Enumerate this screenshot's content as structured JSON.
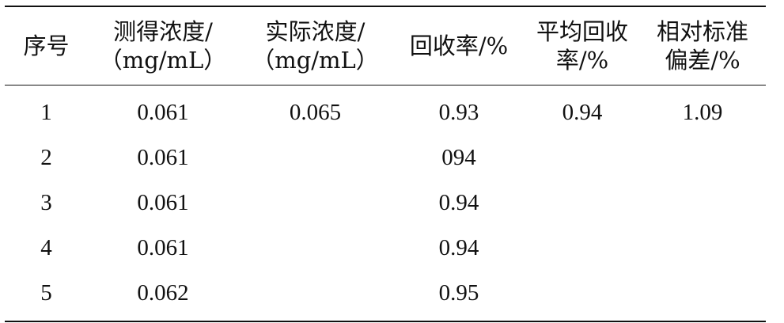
{
  "table": {
    "headers": [
      {
        "line1": "序号",
        "line2": ""
      },
      {
        "line1": "测得浓度/",
        "line2": "（mg/mL）"
      },
      {
        "line1": "实际浓度/",
        "line2": "（mg/mL）"
      },
      {
        "line1": "回收率/%",
        "line2": ""
      },
      {
        "line1": "平均回收",
        "line2": "率/%"
      },
      {
        "line1": "相对标准",
        "line2": "偏差/%"
      }
    ],
    "rows": [
      [
        "1",
        "0.061",
        "0.065",
        "0.93",
        "0.94",
        "1.09"
      ],
      [
        "2",
        "0.061",
        "",
        "094",
        "",
        ""
      ],
      [
        "3",
        "0.061",
        "",
        "0.94",
        "",
        ""
      ],
      [
        "4",
        "0.061",
        "",
        "0.94",
        "",
        ""
      ],
      [
        "5",
        "0.062",
        "",
        "0.95",
        "",
        ""
      ]
    ]
  }
}
